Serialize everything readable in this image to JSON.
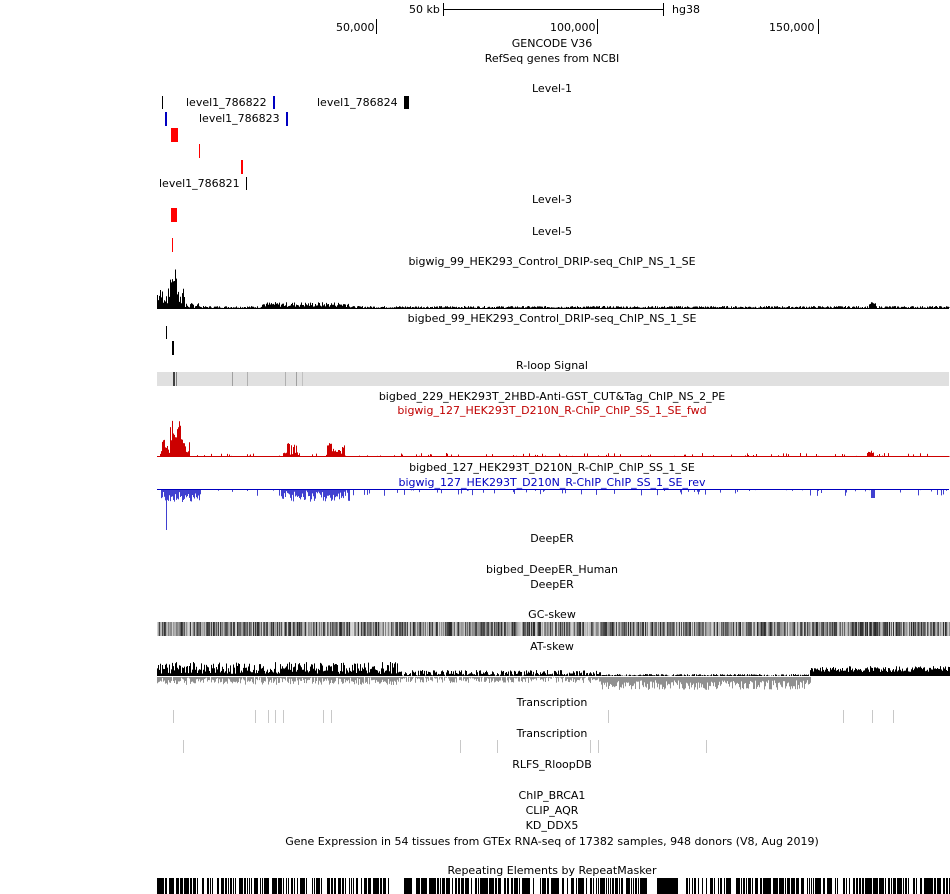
{
  "ruler": {
    "scale_label": "50 kb",
    "assembly": "hg38",
    "ticks": [
      "50,000",
      "100,000",
      "150,000"
    ]
  },
  "tracks": {
    "gencode": "GENCODE V36",
    "refseq": "RefSeq genes from NCBI",
    "level1": "Level-1",
    "level3": "Level-3",
    "level5": "Level-5",
    "drip_bigwig": "bigwig_99_HEK293_Control_DRIP-seq_ChIP_NS_1_SE",
    "drip_bigbed": "bigbed_99_HEK293_Control_DRIP-seq_ChIP_NS_1_SE",
    "rloop_signal": "R-loop Signal",
    "gst_bigbed": "bigbed_229_HEK293T_2HBD-Anti-GST_CUT&Tag_ChIP_NS_2_PE",
    "rchip_fwd": "bigwig_127_HEK293T_D210N_R-ChIP_ChIP_SS_1_SE_fwd",
    "rchip_bigbed": "bigbed_127_HEK293T_D210N_R-ChIP_ChIP_SS_1_SE",
    "rchip_rev": "bigwig_127_HEK293T_D210N_R-ChIP_ChIP_SS_1_SE_rev",
    "deeper": "DeepER",
    "deeper_bigbed": "bigbed_DeepER_Human",
    "deeper2": "DeepER",
    "gc_skew": "GC-skew",
    "at_skew": "AT-skew",
    "transcription1": "Transcription",
    "transcription2": "Transcription",
    "rlfs": "RLFS_RloopDB",
    "chip_brca1": "ChIP_BRCA1",
    "clip_aqr": "CLIP_AQR",
    "kd_ddx5": "KD_DDX5",
    "gtex": "Gene Expression in 54 tissues from GTEx RNA-seq of 17382 samples, 948 donors (V8, Aug 2019)",
    "repeatmasker": "Repeating Elements by RepeatMasker"
  },
  "features": {
    "level1_a": "level1_786822",
    "level1_b": "level1_786824",
    "level1_c": "level1_786823",
    "level1_d": "level1_786821"
  },
  "colors": {
    "feature_blue": "#0000c0",
    "feature_red": "#ff0000",
    "fwd_signal": "#cc0000",
    "rev_signal": "#4040d0",
    "rloop_band": "#e0e0e0"
  }
}
